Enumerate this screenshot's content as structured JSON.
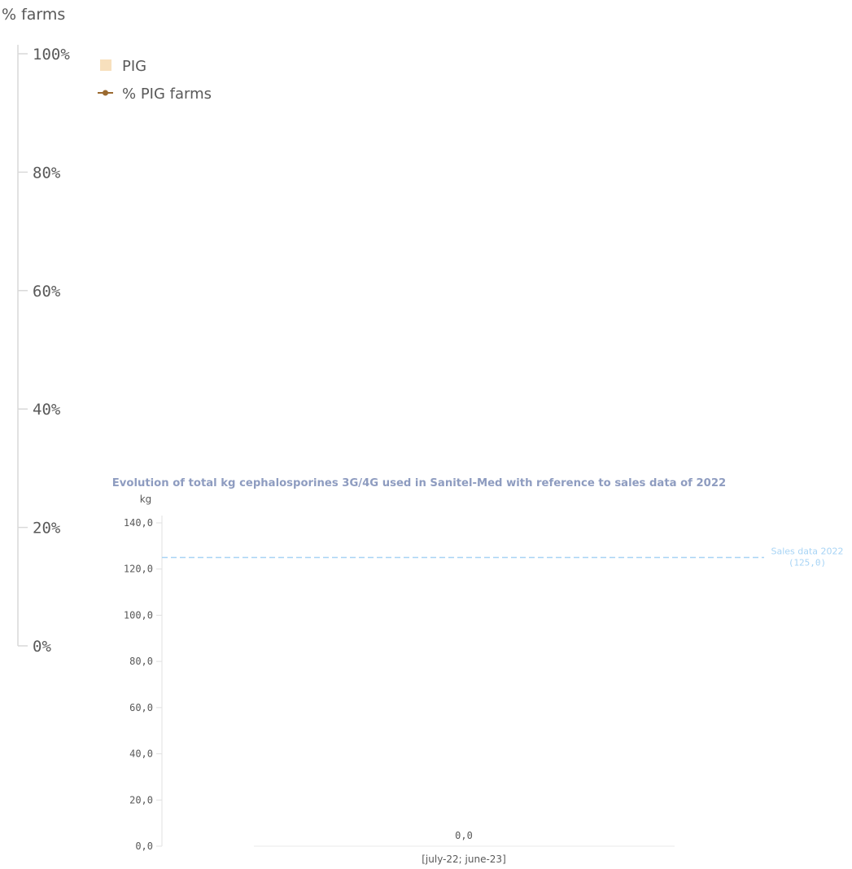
{
  "chart_data": [
    {
      "type": "line",
      "ylabel": "% farms",
      "y_ticks": [
        "100%",
        "80%",
        "60%",
        "40%",
        "20%",
        "0%"
      ],
      "ylim": [
        0,
        100
      ],
      "legend": [
        {
          "label": "PIG",
          "marker": "square",
          "color": "#f7e0bd"
        },
        {
          "label": "% PIG farms",
          "marker": "line-dot",
          "color": "#9b6a2f"
        }
      ],
      "legend_position": "top-left",
      "series": []
    },
    {
      "type": "bar",
      "title": "Evolution of total kg cephalosporines 3G/4G used in Sanitel-Med with reference to sales data of 2022",
      "ylabel": "kg",
      "y_ticks": [
        "140,0",
        "120,0",
        "100,0",
        "80,0",
        "60,0",
        "40,0",
        "20,0",
        "0,0"
      ],
      "ylim": [
        0,
        140
      ],
      "categories": [
        "[july-22; june-23]"
      ],
      "values": [
        0
      ],
      "value_labels": [
        "0,0"
      ],
      "reference_line": {
        "value": 125,
        "label_line1": "Sales data 2022",
        "label_line2": "(125,0)",
        "color": "#a8d4f5"
      },
      "title_color": "#8e9cc0"
    }
  ]
}
